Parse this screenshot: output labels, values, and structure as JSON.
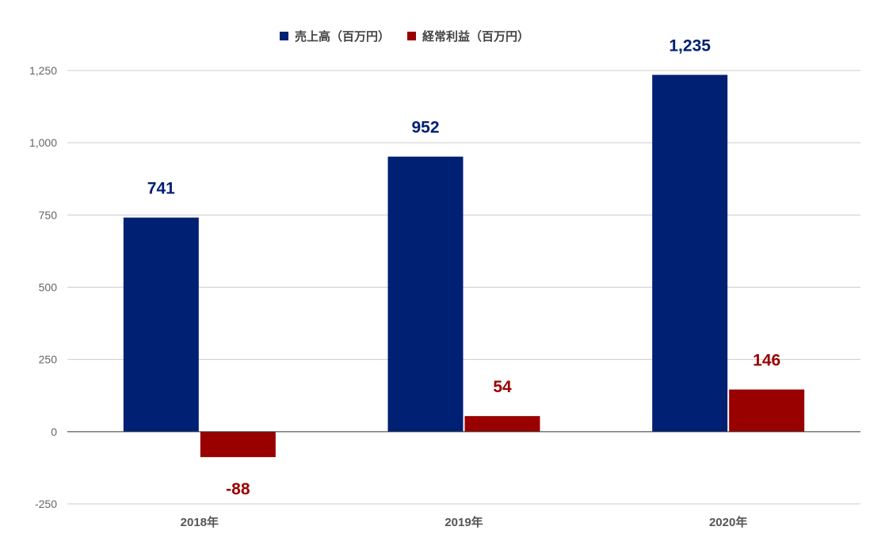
{
  "chart_data": {
    "type": "bar",
    "categories": [
      "2018年",
      "2019年",
      "2020年"
    ],
    "series": [
      {
        "name": "売上高（百万円）",
        "color": "#002074",
        "values": [
          741,
          952,
          1235
        ],
        "labels": [
          "741",
          "952",
          "1,235"
        ]
      },
      {
        "name": "経常利益（百万円）",
        "color": "#990000",
        "values": [
          -88,
          54,
          146
        ],
        "labels": [
          "-88",
          "54",
          "146"
        ]
      }
    ],
    "ylim": [
      -250,
      1250
    ],
    "yticks": [
      -250,
      0,
      250,
      500,
      750,
      1000,
      1250
    ],
    "ytick_labels": [
      "-250",
      "0",
      "250",
      "500",
      "750",
      "1,000",
      "1,250"
    ],
    "legend_position": "top-center",
    "grid": true
  }
}
